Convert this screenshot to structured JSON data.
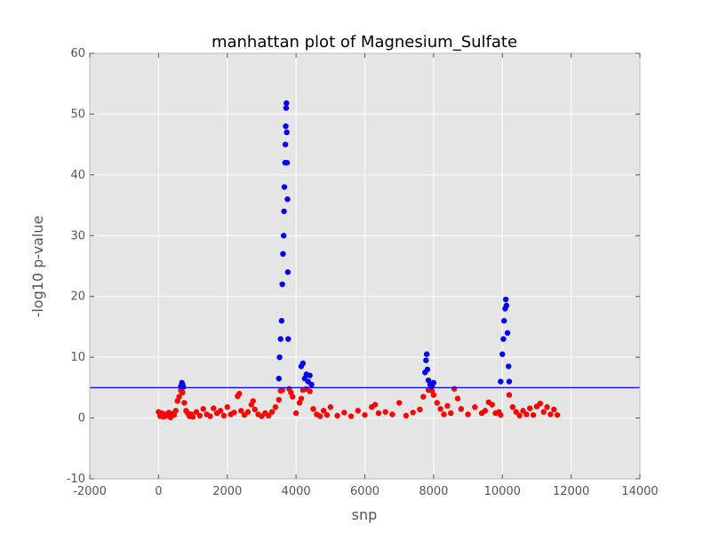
{
  "chart_data": {
    "type": "scatter",
    "title": "manhattan plot of Magnesium_Sulfate",
    "xlabel": "snp",
    "ylabel": "-log10 p-value",
    "xlim": [
      -2000,
      14000
    ],
    "ylim": [
      -10,
      60
    ],
    "xticks": [
      -2000,
      0,
      2000,
      4000,
      6000,
      8000,
      10000,
      12000,
      14000
    ],
    "yticks": [
      -10,
      0,
      10,
      20,
      30,
      40,
      50,
      60
    ],
    "grid": true,
    "background_color": "#e5e5e5",
    "threshold": 5,
    "threshold_color": "#0000ff",
    "colors": {
      "above_threshold": "#0000ff",
      "below_threshold": "#ff0000"
    },
    "series": [
      {
        "color": "#ff0000",
        "x": [
          0,
          50,
          100,
          150,
          200,
          250,
          300,
          350,
          400,
          450,
          500,
          550,
          600,
          650,
          700,
          750,
          800,
          850,
          900,
          950,
          1000,
          1100,
          1200,
          1300,
          1400,
          1500,
          1600,
          1700,
          1800,
          1900,
          2000,
          2100,
          2200,
          2300,
          2350,
          2400,
          2500,
          2600,
          2700,
          2750,
          2800,
          2900,
          3000,
          3100,
          3200,
          3300,
          3400,
          3500,
          3550,
          3600,
          3800,
          3850,
          3900,
          4000,
          4100,
          4150,
          4200,
          4300,
          4400,
          4500,
          4600,
          4700,
          4800,
          4900,
          5000,
          5200,
          5400,
          5600,
          5800,
          6000,
          6200,
          6300,
          6400,
          6600,
          6800,
          7000,
          7200,
          7400,
          7600,
          7700,
          7850,
          7950,
          8000,
          8100,
          8200,
          8300,
          8400,
          8500,
          8600,
          8700,
          8800,
          9000,
          9200,
          9400,
          9500,
          9600,
          9700,
          9800,
          9900,
          9950,
          10200,
          10300,
          10400,
          10500,
          10600,
          10700,
          10800,
          10900,
          11000,
          11100,
          11200,
          11300,
          11400,
          11500,
          11600
        ],
        "y": [
          1.0,
          0.3,
          0.8,
          0.2,
          0.6,
          0.4,
          0.9,
          0.1,
          0.7,
          0.5,
          1.2,
          2.8,
          3.5,
          4.5,
          4.2,
          2.5,
          1.2,
          0.8,
          0.3,
          0.6,
          0.2,
          1.0,
          0.4,
          1.5,
          0.6,
          0.3,
          1.6,
          0.8,
          1.2,
          0.4,
          1.8,
          0.6,
          0.9,
          3.6,
          4.0,
          1.2,
          0.5,
          1.0,
          2.2,
          2.8,
          1.4,
          0.6,
          0.3,
          0.8,
          0.4,
          1.0,
          1.8,
          3.0,
          4.5,
          4.6,
          4.8,
          4.2,
          3.5,
          0.8,
          2.5,
          3.2,
          4.6,
          4.8,
          4.4,
          1.5,
          0.6,
          0.3,
          1.2,
          0.5,
          1.8,
          0.4,
          0.9,
          0.3,
          1.2,
          0.5,
          1.8,
          2.2,
          0.8,
          1.0,
          0.6,
          2.5,
          0.4,
          0.9,
          1.4,
          3.5,
          4.6,
          4.5,
          3.8,
          2.5,
          1.5,
          0.6,
          2.0,
          0.8,
          4.8,
          3.2,
          1.5,
          0.6,
          1.8,
          0.8,
          1.2,
          2.6,
          2.2,
          0.8,
          1.0,
          0.5,
          3.8,
          1.8,
          1.0,
          0.4,
          1.2,
          0.6,
          1.6,
          0.5,
          1.9,
          2.4,
          1.0,
          1.8,
          0.6,
          1.4,
          0.5
        ]
      },
      {
        "color": "#0000ff",
        "x": [
          650,
          680,
          700,
          720,
          3500,
          3520,
          3550,
          3580,
          3600,
          3620,
          3640,
          3650,
          3660,
          3680,
          3690,
          3700,
          3710,
          3720,
          3730,
          3740,
          3750,
          3760,
          3770,
          4150,
          4200,
          4250,
          4300,
          4350,
          4400,
          4450,
          7750,
          7780,
          7800,
          7820,
          7850,
          7900,
          7950,
          8000,
          9950,
          10000,
          10030,
          10050,
          10080,
          10100,
          10120,
          10150,
          10180,
          10200
        ],
        "y": [
          5.2,
          5.8,
          5.5,
          5.1,
          6.5,
          10.0,
          13.0,
          16.0,
          22.0,
          27.0,
          30.0,
          34.0,
          38.0,
          42.0,
          45.0,
          48.0,
          51.0,
          51.8,
          47.0,
          42.0,
          36.0,
          24.0,
          13.0,
          8.5,
          9.0,
          6.5,
          7.2,
          6.0,
          7.0,
          5.5,
          7.5,
          9.5,
          10.5,
          8.0,
          6.2,
          5.5,
          5.2,
          5.8,
          6.0,
          10.5,
          13.0,
          16.0,
          18.0,
          19.5,
          18.5,
          14.0,
          8.5,
          6.0
        ]
      }
    ]
  }
}
